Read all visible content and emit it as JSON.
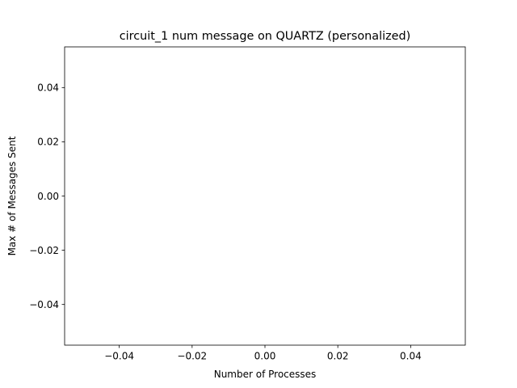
{
  "chart_data": {
    "type": "line",
    "title": "circuit_1 num message on QUARTZ (personalized)",
    "xlabel": "Number of Processes",
    "ylabel": "Max # of Messages Sent",
    "xlim": [
      -0.055,
      0.055
    ],
    "ylim": [
      -0.055,
      0.055
    ],
    "xticks": [
      -0.04,
      -0.02,
      0.0,
      0.02,
      0.04
    ],
    "xtick_labels": [
      "−0.04",
      "−0.02",
      "0.00",
      "0.02",
      "0.04"
    ],
    "yticks": [
      -0.04,
      -0.02,
      0.0,
      0.02,
      0.04
    ],
    "ytick_labels": [
      "−0.04",
      "−0.02",
      "0.00",
      "0.02",
      "0.04"
    ],
    "series": [],
    "grid": false,
    "colors": {
      "axes": "#000000",
      "background": "#ffffff"
    }
  }
}
